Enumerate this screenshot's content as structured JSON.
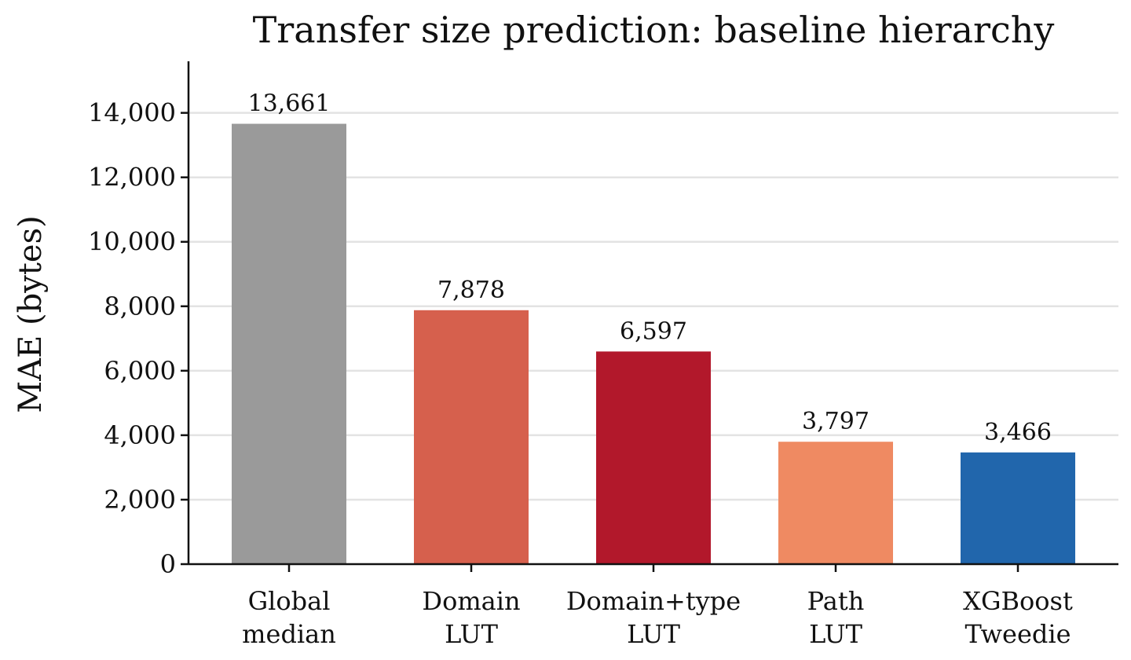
{
  "chart_data": {
    "type": "bar",
    "title": "Transfer size prediction: baseline hierarchy",
    "xlabel": "",
    "ylabel": "MAE (bytes)",
    "ylim": [
      0,
      15600
    ],
    "yticks": [
      0,
      2000,
      4000,
      6000,
      8000,
      10000,
      12000,
      14000
    ],
    "ytick_labels": [
      "0",
      "2,000",
      "4,000",
      "6,000",
      "8,000",
      "10,000",
      "12,000",
      "14,000"
    ],
    "categories": [
      [
        "Global",
        "median"
      ],
      [
        "Domain",
        "LUT"
      ],
      [
        "Domain+type",
        "LUT"
      ],
      [
        "Path",
        "LUT"
      ],
      [
        "XGBoost",
        "Tweedie"
      ]
    ],
    "values": [
      13661,
      7878,
      6597,
      3797,
      3466
    ],
    "value_labels": [
      "13,661",
      "7,878",
      "6,597",
      "3,797",
      "3,466"
    ],
    "colors": [
      "#9a9a9a",
      "#d6604d",
      "#b2182b",
      "#ef8a62",
      "#2166ac"
    ],
    "grid": "y",
    "legend": "none"
  }
}
